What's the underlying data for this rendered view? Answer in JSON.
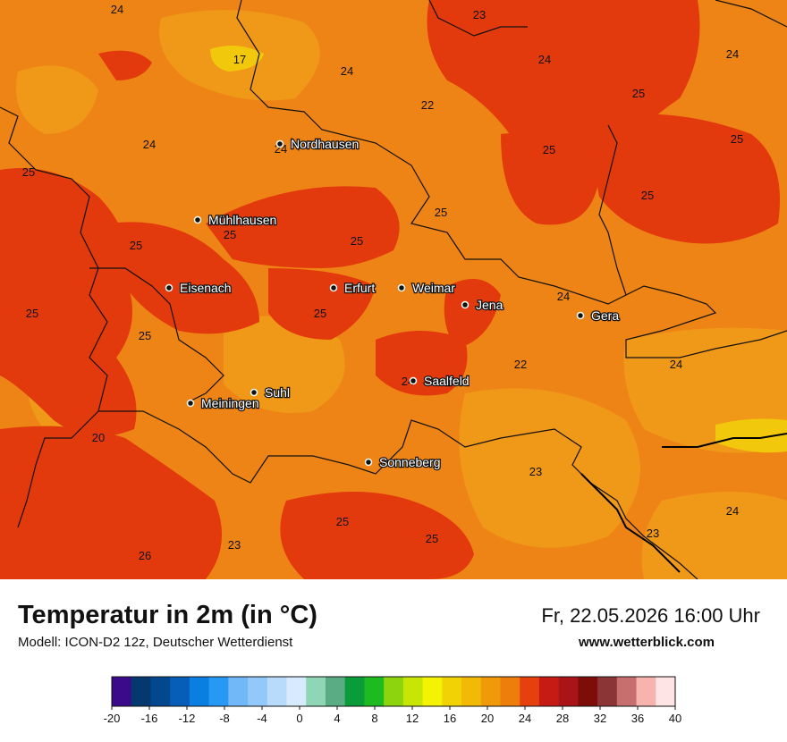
{
  "title": "Temperatur in 2m (in °C)",
  "model": "Modell: ICON-D2 12z, Deutscher Wetterdienst",
  "datetime": "Fr, 22.05.2026 16:00 Uhr",
  "website": "www.wetterblick.com",
  "colors": {
    "base": "#ee8415",
    "warm": "#e33a0d",
    "cool": "#f09818",
    "hot": "#f2c80c",
    "border": "#111111"
  },
  "cities": [
    {
      "name": "Nordhausen"
    },
    {
      "name": "Mühlhausen"
    },
    {
      "name": "Eisenach"
    },
    {
      "name": "Erfurt"
    },
    {
      "name": "Weimar"
    },
    {
      "name": "Jena"
    },
    {
      "name": "Gera"
    },
    {
      "name": "Saalfeld"
    },
    {
      "name": "Suhl"
    },
    {
      "name": "Meiningen"
    },
    {
      "name": "Sonneberg"
    }
  ],
  "temperature_labels": [
    "24",
    "23",
    "17",
    "24",
    "24",
    "24",
    "22",
    "25",
    "24",
    "25",
    "25",
    "24",
    "25",
    "25",
    "25",
    "25",
    "25",
    "25",
    "24",
    "25",
    "25",
    "22",
    "24",
    "25",
    "24",
    "20",
    "23",
    "25",
    "25",
    "23",
    "26",
    "23",
    "24"
  ],
  "legend": {
    "ticks": [
      "-20",
      "-16",
      "-12",
      "-8",
      "-4",
      "0",
      "4",
      "8",
      "12",
      "16",
      "20",
      "24",
      "28",
      "32",
      "36",
      "40"
    ],
    "colors": [
      "#3a0a8a",
      "#05386e",
      "#03488f",
      "#075eb8",
      "#0b7ee2",
      "#2898f5",
      "#71b8f9",
      "#92c8fa",
      "#b8dbfc",
      "#d8eafe",
      "#8ed6b6",
      "#5aac84",
      "#0a9c38",
      "#1dba20",
      "#8dd40e",
      "#c7e605",
      "#f3f303",
      "#f1d204",
      "#f2b906",
      "#f19a09",
      "#ee7e0c",
      "#e5400e",
      "#c61b14",
      "#aa1418",
      "#7e0d09",
      "#8c3537",
      "#c76f6f",
      "#f7b3ae",
      "#fee4e4"
    ]
  }
}
